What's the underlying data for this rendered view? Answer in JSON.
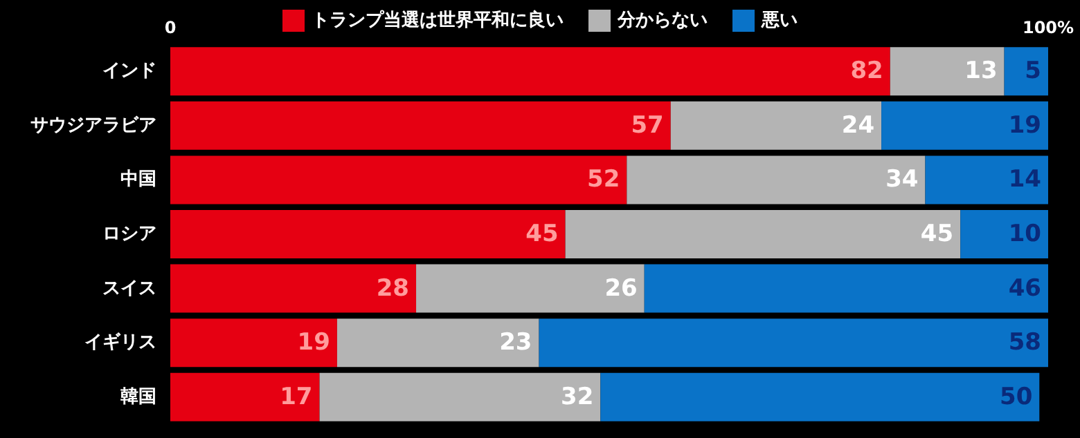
{
  "chart_data": {
    "type": "bar",
    "orientation": "horizontal",
    "stacked": true,
    "categories": [
      "インド",
      "サウジアラビア",
      "中国",
      "ロシア",
      "スイス",
      "イギリス",
      "韓国"
    ],
    "series": [
      {
        "name": "トランプ当選は世界平和に良い",
        "color": "#e60012",
        "values": [
          82,
          57,
          52,
          45,
          28,
          19,
          17
        ]
      },
      {
        "name": "分からない",
        "color": "#b4b4b4",
        "values": [
          13,
          24,
          34,
          45,
          26,
          23,
          32
        ]
      },
      {
        "name": "悪い",
        "color": "#0a73c8",
        "values": [
          5,
          19,
          14,
          10,
          46,
          58,
          50
        ]
      }
    ],
    "xlim": [
      0,
      100
    ],
    "xticks": [
      0,
      {
        "value": 100,
        "label": "100%"
      }
    ],
    "data_labels": true,
    "legend": "top",
    "grid": false
  }
}
